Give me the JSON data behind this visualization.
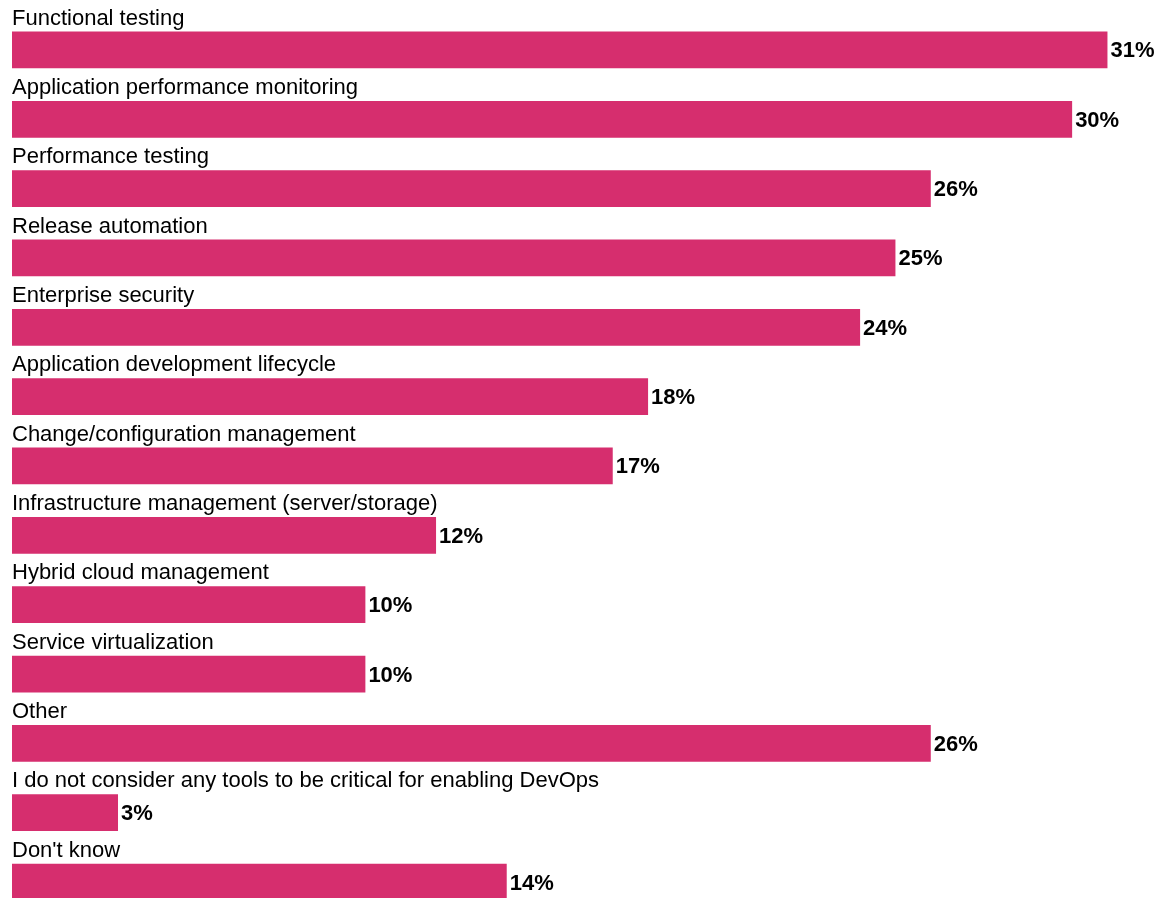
{
  "chart_data": {
    "type": "bar",
    "orientation": "horizontal",
    "data_labels": true,
    "categories": [
      "Functional testing",
      "Application performance monitoring",
      "Performance testing",
      "Release automation",
      "Enterprise security",
      "Application development lifecycle",
      "Change/configuration management",
      "Infrastructure management (server/storage)",
      "Hybrid cloud management",
      "Service virtualization",
      "Other",
      "I do not consider any tools to be critical for enabling DevOps",
      "Don't know"
    ],
    "values": [
      31,
      30,
      26,
      25,
      24,
      18,
      17,
      12,
      10,
      10,
      26,
      3,
      14
    ],
    "value_labels": [
      "31%",
      "30%",
      "26%",
      "25%",
      "24%",
      "18%",
      "17%",
      "12%",
      "10%",
      "10%",
      "26%",
      "3%",
      "14%"
    ],
    "color": "#d62e6e"
  }
}
